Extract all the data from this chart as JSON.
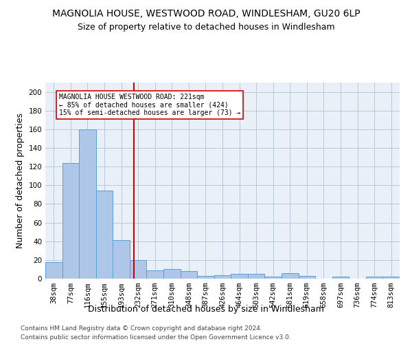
{
  "title1": "MAGNOLIA HOUSE, WESTWOOD ROAD, WINDLESHAM, GU20 6LP",
  "title2": "Size of property relative to detached houses in Windlesham",
  "xlabel": "Distribution of detached houses by size in Windlesham",
  "ylabel": "Number of detached properties",
  "bins": [
    "38sqm",
    "77sqm",
    "116sqm",
    "155sqm",
    "193sqm",
    "232sqm",
    "271sqm",
    "310sqm",
    "348sqm",
    "387sqm",
    "426sqm",
    "464sqm",
    "503sqm",
    "542sqm",
    "581sqm",
    "619sqm",
    "658sqm",
    "697sqm",
    "736sqm",
    "774sqm",
    "813sqm"
  ],
  "values": [
    18,
    124,
    160,
    94,
    41,
    20,
    9,
    10,
    8,
    3,
    4,
    5,
    5,
    2,
    6,
    3,
    0,
    2,
    0,
    2,
    2
  ],
  "bar_color": "#aec6e8",
  "bar_edge_color": "#5a9fd4",
  "vline_color": "#cc0000",
  "vline_pos": 4.74,
  "annotation_text": "MAGNOLIA HOUSE WESTWOOD ROAD: 221sqm\n← 85% of detached houses are smaller (424)\n15% of semi-detached houses are larger (73) →",
  "annotation_box_color": "#ffffff",
  "annotation_box_edge": "#cc0000",
  "ylim": [
    0,
    210
  ],
  "yticks": [
    0,
    20,
    40,
    60,
    80,
    100,
    120,
    140,
    160,
    180,
    200
  ],
  "footer1": "Contains HM Land Registry data © Crown copyright and database right 2024.",
  "footer2": "Contains public sector information licensed under the Open Government Licence v3.0.",
  "bg_color": "#eaf0f8",
  "title1_fontsize": 10,
  "title2_fontsize": 9,
  "tick_fontsize": 7.5,
  "ylabel_fontsize": 9,
  "xlabel_fontsize": 9
}
